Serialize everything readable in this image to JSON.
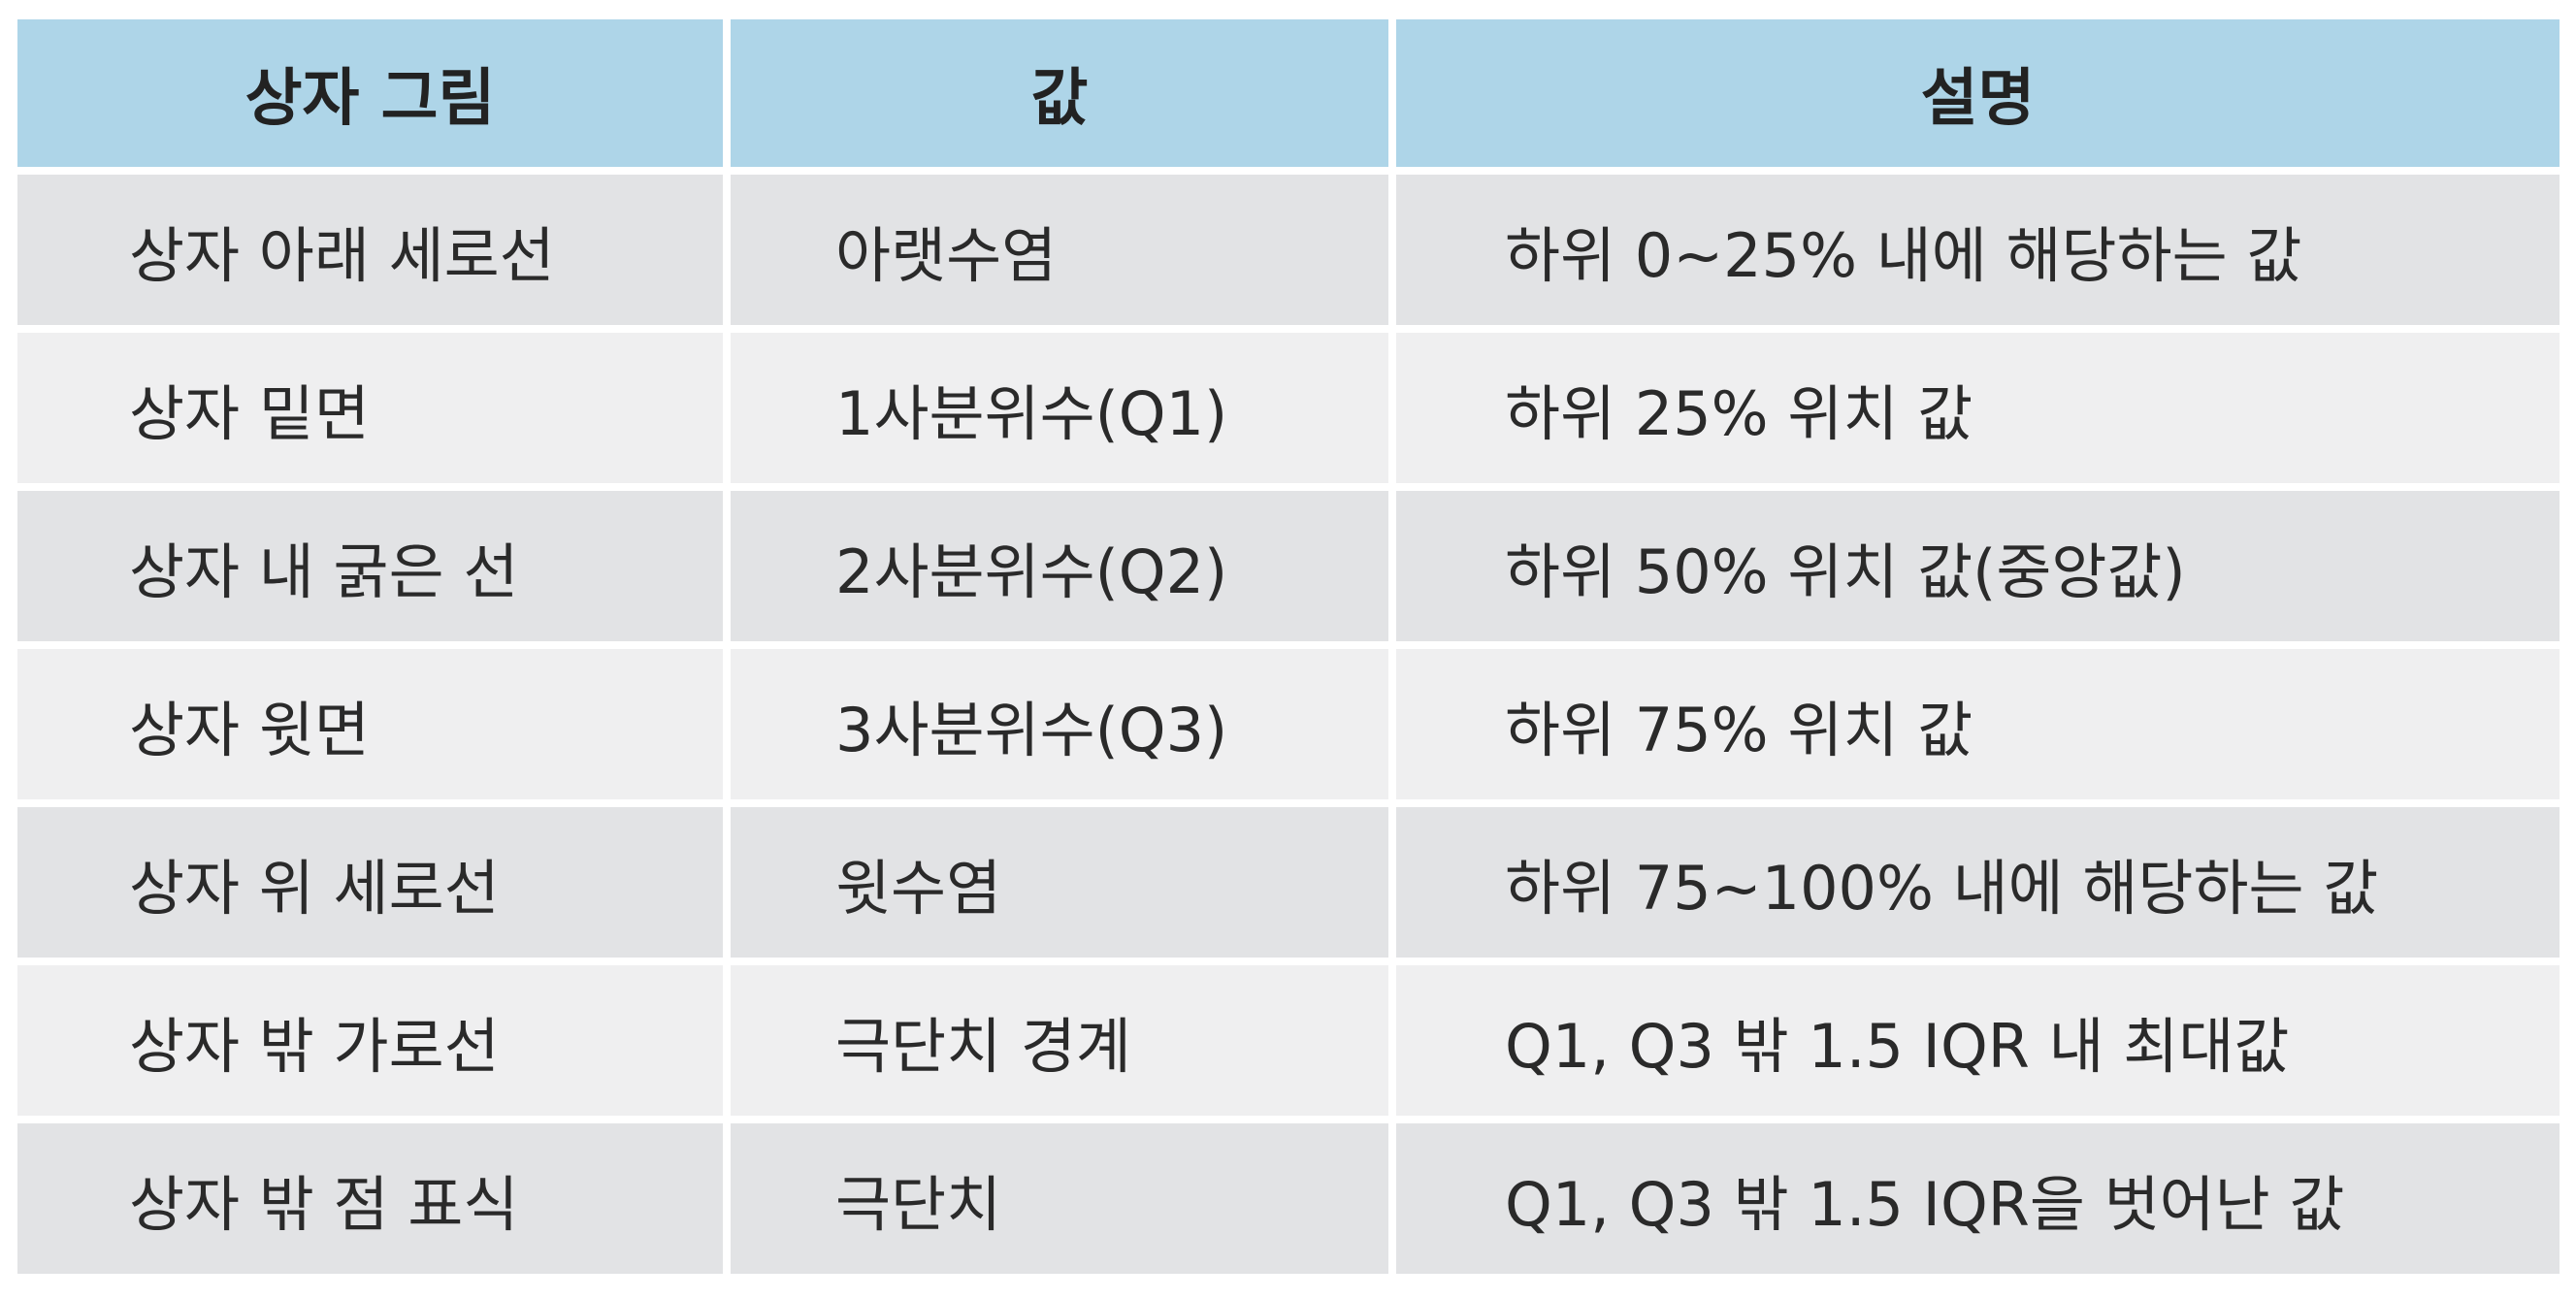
{
  "table": {
    "headers": [
      "상자 그림",
      "값",
      "설명"
    ],
    "rows": [
      [
        "상자 아래 세로선",
        "아랫수염",
        "하위 0~25% 내에 해당하는 값"
      ],
      [
        "상자 밑면",
        "1사분위수(Q1)",
        "하위 25% 위치 값"
      ],
      [
        "상자 내 굵은 선",
        "2사분위수(Q2)",
        "하위 50% 위치 값(중앙값)"
      ],
      [
        "상자 윗면",
        "3사분위수(Q3)",
        "하위 75% 위치 값"
      ],
      [
        "상자 위 세로선",
        "윗수염",
        "하위 75~100% 내에 해당하는 값"
      ],
      [
        "상자 밖 가로선",
        "극단치 경계",
        "Q1, Q3 밖 1.5 IQR 내 최대값"
      ],
      [
        "상자 밖 점 표식",
        "극단치",
        "Q1, Q3 밖 1.5 IQR을 벗어난 값"
      ]
    ]
  },
  "colors": {
    "header_bg": "#aed5e8",
    "row_odd_bg": "#e2e3e5",
    "row_even_bg": "#efeff0",
    "text": "#2a2a2a"
  }
}
